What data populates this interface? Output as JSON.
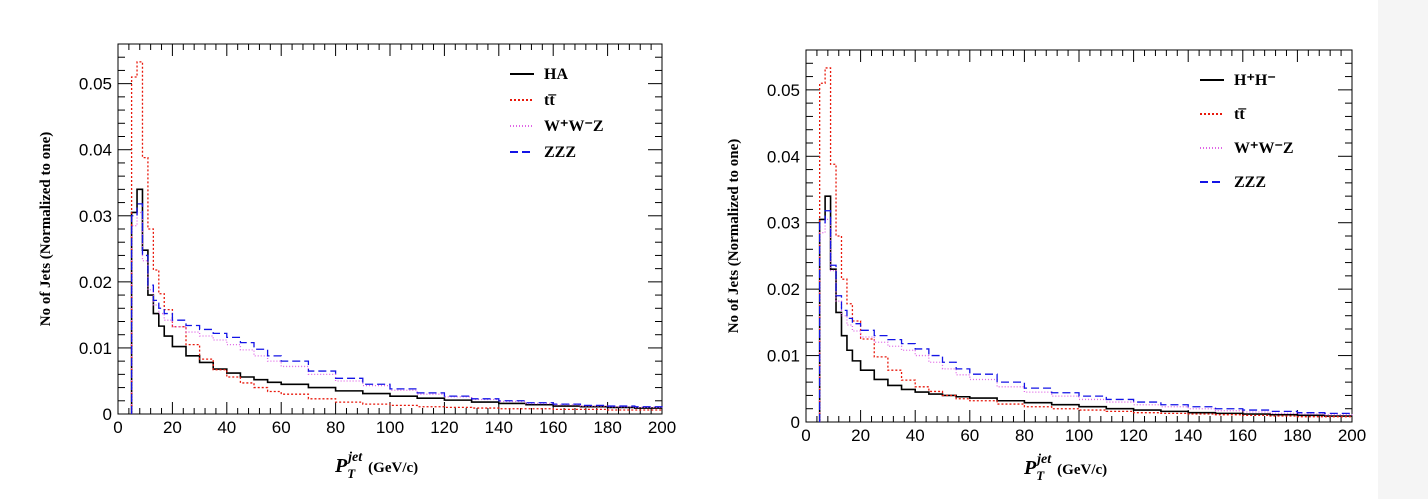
{
  "chart_data": [
    {
      "type": "line",
      "histogram": true,
      "title": "",
      "xlabel_main": "P",
      "xlabel_sub": "T",
      "xlabel_sup": "jet",
      "xlabel_unit": "(GeV/c)",
      "ylabel": "No of Jets (Normalized to one)",
      "xlim": [
        0,
        200
      ],
      "ylim": [
        0,
        0.056
      ],
      "xticks": [
        "0",
        "20",
        "40",
        "60",
        "80",
        "100",
        "120",
        "140",
        "160",
        "180",
        "200"
      ],
      "yticks": [
        "0",
        "0.01",
        "0.02",
        "0.03",
        "0.04",
        "0.05"
      ],
      "legend_position": "top-right",
      "x": [
        5,
        7,
        9,
        11,
        13,
        15,
        17,
        20,
        25,
        30,
        35,
        40,
        45,
        50,
        55,
        60,
        70,
        80,
        90,
        100,
        110,
        120,
        130,
        140,
        150,
        160,
        170,
        180,
        190,
        200
      ],
      "series": [
        {
          "name": "HA",
          "color": "#000000",
          "dash": "",
          "values": [
            0.0305,
            0.034,
            0.0248,
            0.018,
            0.0152,
            0.0133,
            0.0118,
            0.0102,
            0.0088,
            0.0078,
            0.0068,
            0.0062,
            0.0056,
            0.0052,
            0.0048,
            0.0045,
            0.004,
            0.0035,
            0.0031,
            0.0027,
            0.0024,
            0.0021,
            0.0018,
            0.0016,
            0.0014,
            0.0012,
            0.0011,
            0.001,
            0.0009,
            0.0009
          ]
        },
        {
          "name": "tt̅",
          "color": "#e8190c",
          "dash": "2,2",
          "values": [
            0.051,
            0.0533,
            0.0388,
            0.028,
            0.0218,
            0.0182,
            0.0158,
            0.0132,
            0.0105,
            0.0083,
            0.0067,
            0.0056,
            0.0047,
            0.004,
            0.0034,
            0.003,
            0.0023,
            0.0018,
            0.0015,
            0.0013,
            0.0011,
            0.001,
            0.0009,
            0.0008,
            0.0008,
            0.0007,
            0.0007,
            0.0006,
            0.0006,
            0.0006
          ]
        },
        {
          "name": "W⁺W⁻Z",
          "color": "#e066e6",
          "dash": "1,2",
          "values": [
            0.0285,
            0.0305,
            0.0232,
            0.0188,
            0.0165,
            0.0152,
            0.0142,
            0.0132,
            0.0124,
            0.0118,
            0.0112,
            0.0105,
            0.0097,
            0.0088,
            0.008,
            0.0072,
            0.006,
            0.005,
            0.0043,
            0.0036,
            0.003,
            0.0026,
            0.0022,
            0.0019,
            0.0016,
            0.0014,
            0.0012,
            0.0011,
            0.001,
            0.0009
          ]
        },
        {
          "name": "ZZZ",
          "color": "#1414e6",
          "dash": "8,4",
          "values": [
            0.03,
            0.0318,
            0.024,
            0.0195,
            0.0172,
            0.016,
            0.0152,
            0.0142,
            0.0134,
            0.0128,
            0.0122,
            0.0116,
            0.0108,
            0.0098,
            0.0088,
            0.008,
            0.0065,
            0.0054,
            0.0045,
            0.0038,
            0.0032,
            0.0027,
            0.0023,
            0.002,
            0.0017,
            0.0015,
            0.0013,
            0.0012,
            0.0011,
            0.001
          ]
        }
      ]
    },
    {
      "type": "line",
      "histogram": true,
      "title": "",
      "xlabel_main": "P",
      "xlabel_sub": "T",
      "xlabel_sup": "jet",
      "xlabel_unit": "(GeV/c)",
      "ylabel": "No of Jets (Normalized to one)",
      "xlim": [
        0,
        200
      ],
      "ylim": [
        0,
        0.056
      ],
      "xticks": [
        "0",
        "20",
        "40",
        "60",
        "80",
        "100",
        "120",
        "140",
        "160",
        "180",
        "200"
      ],
      "yticks": [
        "0",
        "0.01",
        "0.02",
        "0.03",
        "0.04",
        "0.05"
      ],
      "legend_position": "top-right",
      "x": [
        5,
        7,
        9,
        11,
        13,
        15,
        17,
        20,
        25,
        30,
        35,
        40,
        45,
        50,
        55,
        60,
        70,
        80,
        90,
        100,
        110,
        120,
        130,
        140,
        150,
        160,
        170,
        180,
        190,
        200
      ],
      "series": [
        {
          "name": "H⁺H⁻",
          "color": "#000000",
          "dash": "",
          "values": [
            0.0305,
            0.034,
            0.023,
            0.0165,
            0.013,
            0.0108,
            0.0092,
            0.0078,
            0.0064,
            0.0055,
            0.0049,
            0.0045,
            0.0042,
            0.004,
            0.0038,
            0.0036,
            0.0032,
            0.0029,
            0.0026,
            0.0023,
            0.002,
            0.0018,
            0.0016,
            0.0014,
            0.0013,
            0.0012,
            0.0011,
            0.001,
            0.0009,
            0.0009
          ]
        },
        {
          "name": "tt̅",
          "color": "#e8190c",
          "dash": "2,2",
          "values": [
            0.051,
            0.0533,
            0.0388,
            0.028,
            0.0215,
            0.0178,
            0.0152,
            0.0125,
            0.0098,
            0.0078,
            0.0063,
            0.0053,
            0.0046,
            0.004,
            0.0035,
            0.0032,
            0.0027,
            0.0023,
            0.002,
            0.0018,
            0.0016,
            0.0014,
            0.0013,
            0.0012,
            0.0011,
            0.001,
            0.0009,
            0.0008,
            0.0008,
            0.0007
          ]
        },
        {
          "name": "W⁺W⁻Z",
          "color": "#e066e6",
          "dash": "1,2",
          "values": [
            0.0285,
            0.0305,
            0.0228,
            0.0182,
            0.016,
            0.0146,
            0.0137,
            0.0128,
            0.012,
            0.0114,
            0.0108,
            0.01,
            0.009,
            0.008,
            0.0071,
            0.0064,
            0.0053,
            0.0045,
            0.0039,
            0.0034,
            0.003,
            0.0026,
            0.0023,
            0.002,
            0.0017,
            0.0015,
            0.0013,
            0.0012,
            0.0011,
            0.001
          ]
        },
        {
          "name": "ZZZ",
          "color": "#1414e6",
          "dash": "8,4",
          "values": [
            0.03,
            0.0318,
            0.0236,
            0.019,
            0.0168,
            0.0156,
            0.0148,
            0.0138,
            0.013,
            0.0124,
            0.0118,
            0.011,
            0.01,
            0.009,
            0.008,
            0.0072,
            0.006,
            0.0051,
            0.0044,
            0.0039,
            0.0034,
            0.003,
            0.0026,
            0.0023,
            0.002,
            0.0018,
            0.0016,
            0.0014,
            0.0013,
            0.0012
          ]
        }
      ]
    }
  ]
}
